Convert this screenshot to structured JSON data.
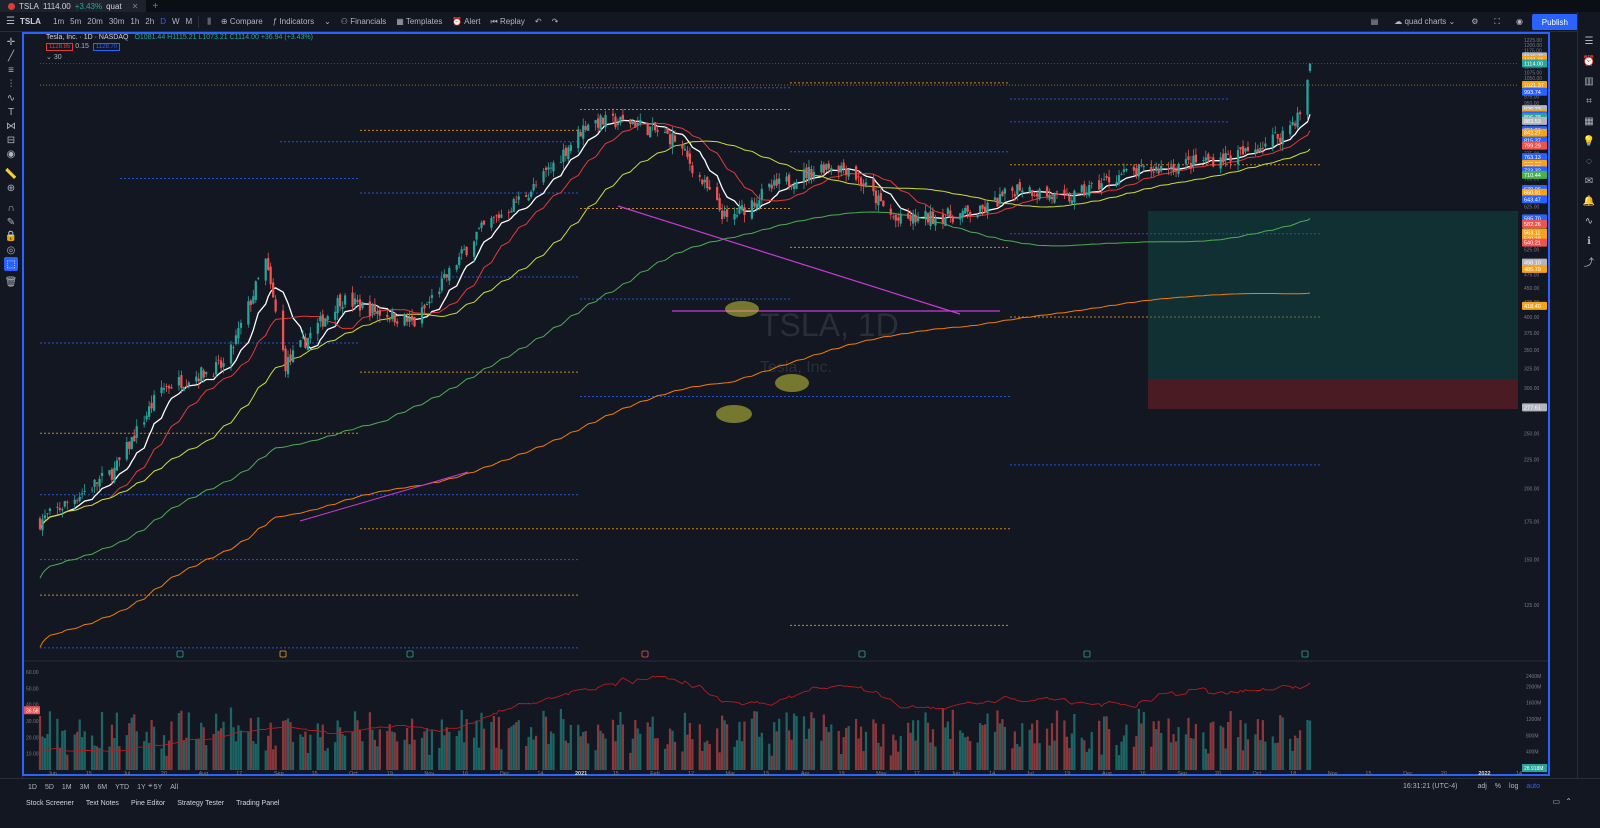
{
  "tab": {
    "symbol": "TSLA",
    "price": "1114.00",
    "change": "+3.43%",
    "suffix": "quat"
  },
  "toolbar": {
    "symbol": "TSLA",
    "intervals": [
      "1m",
      "5m",
      "20m",
      "30m",
      "1h",
      "2h",
      "D",
      "W",
      "M"
    ],
    "active_interval": "D",
    "compare": "Compare",
    "indicators": "Indicators",
    "financials": "Financials",
    "templates": "Templates",
    "alert": "Alert",
    "replay": "Replay",
    "layout_name": "quad charts",
    "publish": "Publish"
  },
  "legend": {
    "name": "Tesla, Inc. · 1D · NASDAQ",
    "ohlc": "O1081.44 H1115.21 L1073.21 C1114.00 +36.94 (+3.43%)",
    "bid": "1128.85",
    "spread": "0.15",
    "ask": "1128.70",
    "sub": "30"
  },
  "watermark": {
    "symbol": "TSLA, 1D",
    "name": "Tesla, Inc."
  },
  "colors": {
    "up": "#26a69a",
    "down": "#ef5350",
    "accent": "#2962ff",
    "background": "#131722"
  },
  "price_axis": {
    "ticks": [
      "1225.00",
      "1200.00",
      "1175.00",
      "1150.00",
      "1125.00",
      "1100.00",
      "1075.00",
      "1050.00",
      "1025.00",
      "1000.00",
      "975.00",
      "950.00",
      "925.00",
      "900.00",
      "875.00",
      "850.00",
      "825.00",
      "800.00",
      "775.00",
      "750.00",
      "725.00",
      "700.00",
      "675.00",
      "650.00",
      "625.00",
      "600.00",
      "575.00",
      "550.00",
      "525.00",
      "500.00",
      "475.00",
      "450.00",
      "425.00",
      "400.00",
      "375.00",
      "350.00",
      "325.00",
      "300.00",
      "275.00",
      "250.00",
      "225.00",
      "200.00",
      "175.00",
      "150.00",
      "125.00",
      "100.00"
    ],
    "labels": [
      {
        "text": "1146.75",
        "color": "#b2b5be"
      },
      {
        "text": "1131.16",
        "color": "#f7a21b"
      },
      {
        "text": "1114.00",
        "color": "#26a69a"
      },
      {
        "text": "1021.37",
        "color": "#f7a21b"
      },
      {
        "text": "993.74",
        "color": "#2962ff"
      },
      {
        "text": "926.23",
        "color": "#b2b5be"
      },
      {
        "text": "910.59",
        "color": "#f7a21b"
      },
      {
        "text": "903.55",
        "color": "#2962ff"
      },
      {
        "text": "896.78",
        "color": "#26a69a"
      },
      {
        "text": "883.53",
        "color": "#b2b5be"
      },
      {
        "text": "851.26",
        "color": "#2962ff"
      },
      {
        "text": "842.27",
        "color": "#f7a21b"
      },
      {
        "text": "815.37",
        "color": "#2962ff"
      },
      {
        "text": "799.29",
        "color": "#ef5350"
      },
      {
        "text": "763.13",
        "color": "#2962ff"
      },
      {
        "text": "742.27",
        "color": "#f7a21b"
      },
      {
        "text": "733.65",
        "color": "#f7a21b"
      },
      {
        "text": "723.32",
        "color": "#2962ff"
      },
      {
        "text": "710.44",
        "color": "#4caf50"
      },
      {
        "text": "670.96",
        "color": "#2962ff"
      },
      {
        "text": "660.81",
        "color": "#f7a21b"
      },
      {
        "text": "643.47",
        "color": "#2962ff"
      },
      {
        "text": "595.70",
        "color": "#2962ff"
      },
      {
        "text": "582.26",
        "color": "#ef5350"
      },
      {
        "text": "563.11",
        "color": "#f7a21b"
      },
      {
        "text": "549.18",
        "color": "#f7a21b"
      },
      {
        "text": "540.21",
        "color": "#ef5350"
      },
      {
        "text": "498.10",
        "color": "#b2b5be"
      },
      {
        "text": "485.79",
        "color": "#f7a21b"
      },
      {
        "text": "418.40",
        "color": "#f7a21b"
      },
      {
        "text": "277.61",
        "color": "#b2b5be"
      }
    ]
  },
  "volume_axis": {
    "left_ticks": [
      "60.00",
      "50.00",
      "40.00",
      "30.00",
      "20.00",
      "10.00"
    ],
    "left_label": "36.58",
    "right_ticks": [
      "2400M",
      "2000M",
      "1600M",
      "1200M",
      "800M",
      "400M"
    ],
    "right_label": "28.918M"
  },
  "time_axis": [
    "Jun",
    "15",
    "Jul",
    "20",
    "Aug",
    "17",
    "Sep",
    "15",
    "Oct",
    "19",
    "Nov",
    "16",
    "Dec",
    "14",
    "2021",
    "15",
    "Feb",
    "12",
    "Mar",
    "15",
    "Apr",
    "19",
    "May",
    "17",
    "Jun",
    "14",
    "Jul",
    "19",
    "Aug",
    "16",
    "Sep",
    "20",
    "Oct",
    "18",
    "Nov",
    "15",
    "Dec",
    "20",
    "2022",
    "14"
  ],
  "range_buttons": [
    "1D",
    "5D",
    "1M",
    "3M",
    "6M",
    "YTD",
    "1Y",
    "5Y",
    "All"
  ],
  "status": {
    "time": "16:31:21 (UTC-4)",
    "adj": "adj",
    "pct": "%",
    "log": "log",
    "auto": "auto"
  },
  "bottom_tabs": [
    "Stock Screener",
    "Text Notes",
    "Pine Editor",
    "Strategy Tester",
    "Trading Panel"
  ],
  "chart_data": {
    "type": "candlestick",
    "title": "Tesla, Inc. · 1D · NASDAQ",
    "x_range": [
      "2020-06",
      "2021-10-26"
    ],
    "ylim": [
      100,
      1225
    ],
    "y_scale": "log",
    "grid": false,
    "approx_close_path": [
      [
        "2020-06-01",
        175
      ],
      [
        "2020-07-01",
        215
      ],
      [
        "2020-07-20",
        300
      ],
      [
        "2020-08-15",
        330
      ],
      [
        "2020-08-31",
        500
      ],
      [
        "2020-09-08",
        330
      ],
      [
        "2020-09-30",
        430
      ],
      [
        "2020-10-30",
        390
      ],
      [
        "2020-11-24",
        560
      ],
      [
        "2020-12-18",
        680
      ],
      [
        "2021-01-08",
        880
      ],
      [
        "2021-01-26",
        880
      ],
      [
        "2021-02-12",
        820
      ],
      [
        "2021-03-05",
        590
      ],
      [
        "2021-03-22",
        670
      ],
      [
        "2021-04-14",
        740
      ],
      [
        "2021-04-23",
        730
      ],
      [
        "2021-05-12",
        590
      ],
      [
        "2021-06-15",
        610
      ],
      [
        "2021-07-01",
        680
      ],
      [
        "2021-07-19",
        640
      ],
      [
        "2021-08-10",
        710
      ],
      [
        "2021-08-31",
        735
      ],
      [
        "2021-09-30",
        775
      ],
      [
        "2021-10-15",
        840
      ],
      [
        "2021-10-22",
        910
      ],
      [
        "2021-10-25",
        1024
      ],
      [
        "2021-10-26",
        1114
      ]
    ],
    "moving_averages": [
      {
        "color": "#ffffff"
      },
      {
        "color": "#e53935"
      },
      {
        "color": "#cddc39"
      },
      {
        "color": "#4caf50"
      },
      {
        "color": "#f57c00"
      }
    ],
    "volume_type": "bar",
    "volume_max_million": 60
  }
}
